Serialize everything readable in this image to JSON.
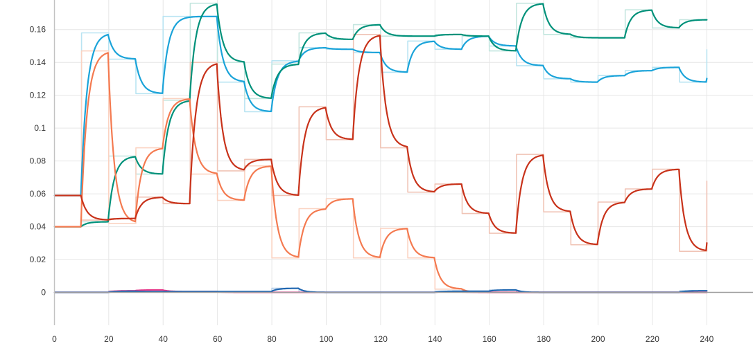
{
  "chart_data": {
    "type": "line",
    "title": "",
    "xlabel": "",
    "ylabel": "",
    "xlim": [
      -20,
      257
    ],
    "ylim": [
      -0.02,
      0.178
    ],
    "x_ticks": [
      0,
      20,
      40,
      60,
      80,
      100,
      120,
      140,
      160,
      180,
      200,
      220,
      240
    ],
    "x_tick_labels": [
      "0",
      "20",
      "40",
      "60",
      "80",
      "100",
      "120",
      "140",
      "160",
      "180",
      "200",
      "220",
      "240"
    ],
    "y_ticks": [
      0,
      0.02,
      0.04,
      0.06,
      0.08,
      0.1,
      0.12,
      0.14,
      0.16
    ],
    "y_tick_labels": [
      "0",
      "0.02",
      "0.04",
      "0.06",
      "0.08",
      "0.1",
      "0.12",
      "0.14",
      "0.16"
    ],
    "grid": true,
    "smoothing_tau": 2.2,
    "series": [
      {
        "color": "#1aa3d9",
        "raw_color": "#b9e4f2",
        "initial": 0.059,
        "segments": [
          [
            10,
            0.158
          ],
          [
            20,
            0.142
          ],
          [
            30,
            0.121
          ],
          [
            40,
            0.168
          ],
          [
            60,
            0.128
          ],
          [
            70,
            0.11
          ],
          [
            80,
            0.141
          ],
          [
            90,
            0.149
          ],
          [
            100,
            0.148
          ],
          [
            110,
            0.146
          ],
          [
            120,
            0.134
          ],
          [
            130,
            0.153
          ],
          [
            140,
            0.148
          ],
          [
            150,
            0.156
          ],
          [
            160,
            0.15
          ],
          [
            170,
            0.138
          ],
          [
            180,
            0.13
          ],
          [
            190,
            0.128
          ],
          [
            200,
            0.132
          ],
          [
            210,
            0.135
          ],
          [
            220,
            0.137
          ],
          [
            230,
            0.128
          ],
          [
            240,
            0.148
          ]
        ],
        "end_x": 240
      },
      {
        "color": "#00917a",
        "raw_color": "#c4e6df",
        "initial": 0.04,
        "segments": [
          [
            10,
            0.043
          ],
          [
            20,
            0.083
          ],
          [
            30,
            0.072
          ],
          [
            40,
            0.117
          ],
          [
            50,
            0.176
          ],
          [
            60,
            0.14
          ],
          [
            70,
            0.118
          ],
          [
            80,
            0.139
          ],
          [
            90,
            0.158
          ],
          [
            100,
            0.154
          ],
          [
            110,
            0.163
          ],
          [
            120,
            0.156
          ],
          [
            140,
            0.157
          ],
          [
            150,
            0.156
          ],
          [
            160,
            0.147
          ],
          [
            170,
            0.176
          ],
          [
            180,
            0.157
          ],
          [
            190,
            0.155
          ],
          [
            210,
            0.172
          ],
          [
            220,
            0.161
          ],
          [
            230,
            0.166
          ]
        ],
        "end_x": 240
      },
      {
        "color": "#f47a50",
        "raw_color": "#fbd3c2",
        "initial": 0.04,
        "segments": [
          [
            10,
            0.147
          ],
          [
            20,
            0.042
          ],
          [
            30,
            0.088
          ],
          [
            40,
            0.118
          ],
          [
            50,
            0.072
          ],
          [
            60,
            0.056
          ],
          [
            70,
            0.077
          ],
          [
            80,
            0.021
          ],
          [
            90,
            0.051
          ],
          [
            100,
            0.057
          ],
          [
            110,
            0.021
          ],
          [
            120,
            0.039
          ],
          [
            130,
            0.021
          ],
          [
            140,
            0.002
          ],
          [
            150,
            0.0
          ],
          [
            160,
            0.0
          ]
        ],
        "end_x": 240
      },
      {
        "color": "#c8321a",
        "raw_color": "#f0c4b6",
        "initial": 0.059,
        "segments": [
          [
            10,
            0.044
          ],
          [
            20,
            0.045
          ],
          [
            30,
            0.058
          ],
          [
            40,
            0.054
          ],
          [
            50,
            0.14
          ],
          [
            60,
            0.074
          ],
          [
            70,
            0.081
          ],
          [
            80,
            0.059
          ],
          [
            90,
            0.113
          ],
          [
            100,
            0.093
          ],
          [
            110,
            0.157
          ],
          [
            120,
            0.088
          ],
          [
            130,
            0.061
          ],
          [
            140,
            0.066
          ],
          [
            150,
            0.048
          ],
          [
            160,
            0.036
          ],
          [
            170,
            0.084
          ],
          [
            180,
            0.049
          ],
          [
            190,
            0.029
          ],
          [
            200,
            0.055
          ],
          [
            210,
            0.063
          ],
          [
            220,
            0.075
          ],
          [
            230,
            0.025
          ],
          [
            240,
            0.068
          ]
        ],
        "end_x": 240
      },
      {
        "color": "#e8398a",
        "raw_color": "#f6c3db",
        "initial": 0.0,
        "segments": [
          [
            20,
            0.001
          ],
          [
            30,
            0.0015
          ],
          [
            40,
            0.0005
          ],
          [
            60,
            0.0
          ],
          [
            80,
            0.0
          ],
          [
            140,
            0.0005
          ],
          [
            150,
            0.0
          ]
        ],
        "end_x": 240
      },
      {
        "color": "#1f66b0",
        "raw_color": "#b3cde8",
        "initial": 0.0,
        "segments": [
          [
            20,
            0.0007
          ],
          [
            30,
            0.0005
          ],
          [
            80,
            0.0025
          ],
          [
            90,
            0.0
          ],
          [
            140,
            0.0007
          ],
          [
            160,
            0.0015
          ],
          [
            170,
            0.0
          ],
          [
            230,
            0.001
          ],
          [
            240,
            0.001
          ]
        ],
        "end_x": 240
      }
    ]
  }
}
